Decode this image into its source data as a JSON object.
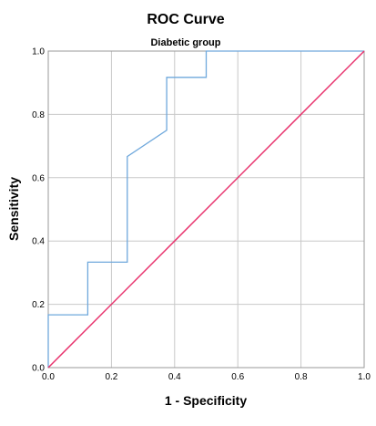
{
  "chart_data": {
    "type": "line",
    "title": "ROC Curve",
    "subtitle": "Diabetic group",
    "xlabel": "1 - Specificity",
    "ylabel": "Sensitivity",
    "xlim": [
      0,
      1
    ],
    "ylim": [
      0,
      1
    ],
    "xticks": [
      "0.0",
      "0.2",
      "0.4",
      "0.6",
      "0.8",
      "1.0"
    ],
    "yticks": [
      "0.0",
      "0.2",
      "0.4",
      "0.6",
      "0.8",
      "1.0"
    ],
    "grid": true,
    "legend": "none",
    "series": [
      {
        "role": "roc-curve",
        "color": "#6fa8dc",
        "points": [
          [
            0,
            0
          ],
          [
            0,
            0.167
          ],
          [
            0.125,
            0.167
          ],
          [
            0.125,
            0.333
          ],
          [
            0.25,
            0.333
          ],
          [
            0.25,
            0.667
          ],
          [
            0.375,
            0.75
          ],
          [
            0.375,
            0.917
          ],
          [
            0.5,
            0.917
          ],
          [
            0.5,
            1.0
          ],
          [
            1.0,
            1.0
          ]
        ]
      },
      {
        "role": "reference-line",
        "color": "#e8336d",
        "points": [
          [
            0,
            0
          ],
          [
            1,
            1
          ]
        ]
      }
    ]
  }
}
